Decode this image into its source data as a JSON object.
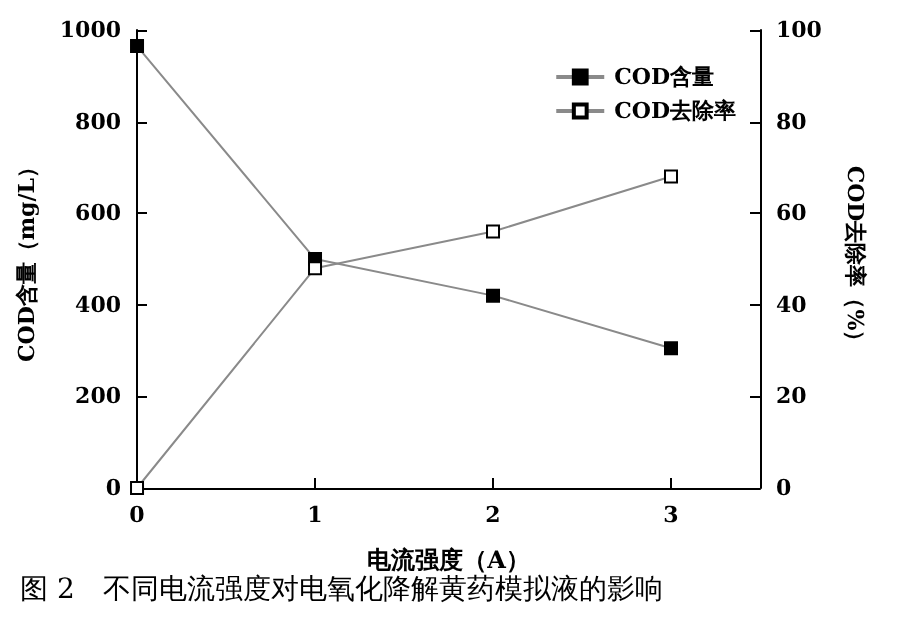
{
  "chart_data": {
    "type": "line",
    "x": [
      0,
      1,
      2,
      3
    ],
    "xlabel": "电流强度（A）",
    "ylabel": "COD含量（mg/L）",
    "y2label": "COD去除率（%）",
    "series": [
      {
        "name": "COD含量",
        "color": "#000000",
        "values": [
          965,
          500,
          420,
          305
        ]
      },
      {
        "name": "COD去除率",
        "color": "#000000",
        "axis": "y2",
        "values": [
          0,
          48,
          56,
          68
        ]
      }
    ],
    "xlim": [
      0,
      3.5
    ],
    "xticks": [
      0,
      1,
      2,
      3
    ],
    "ylim": [
      0,
      1000
    ],
    "yticks": [
      0,
      200,
      400,
      600,
      800,
      1000
    ],
    "y2lim": [
      0,
      100
    ],
    "y2ticks": [
      0,
      20,
      40,
      60,
      80,
      100
    ],
    "marker": "square",
    "legend": "top right",
    "grid": false,
    "annotations": [
      "图 2　不同电流强度对电氧化降解黄药模拟液的影响"
    ]
  }
}
